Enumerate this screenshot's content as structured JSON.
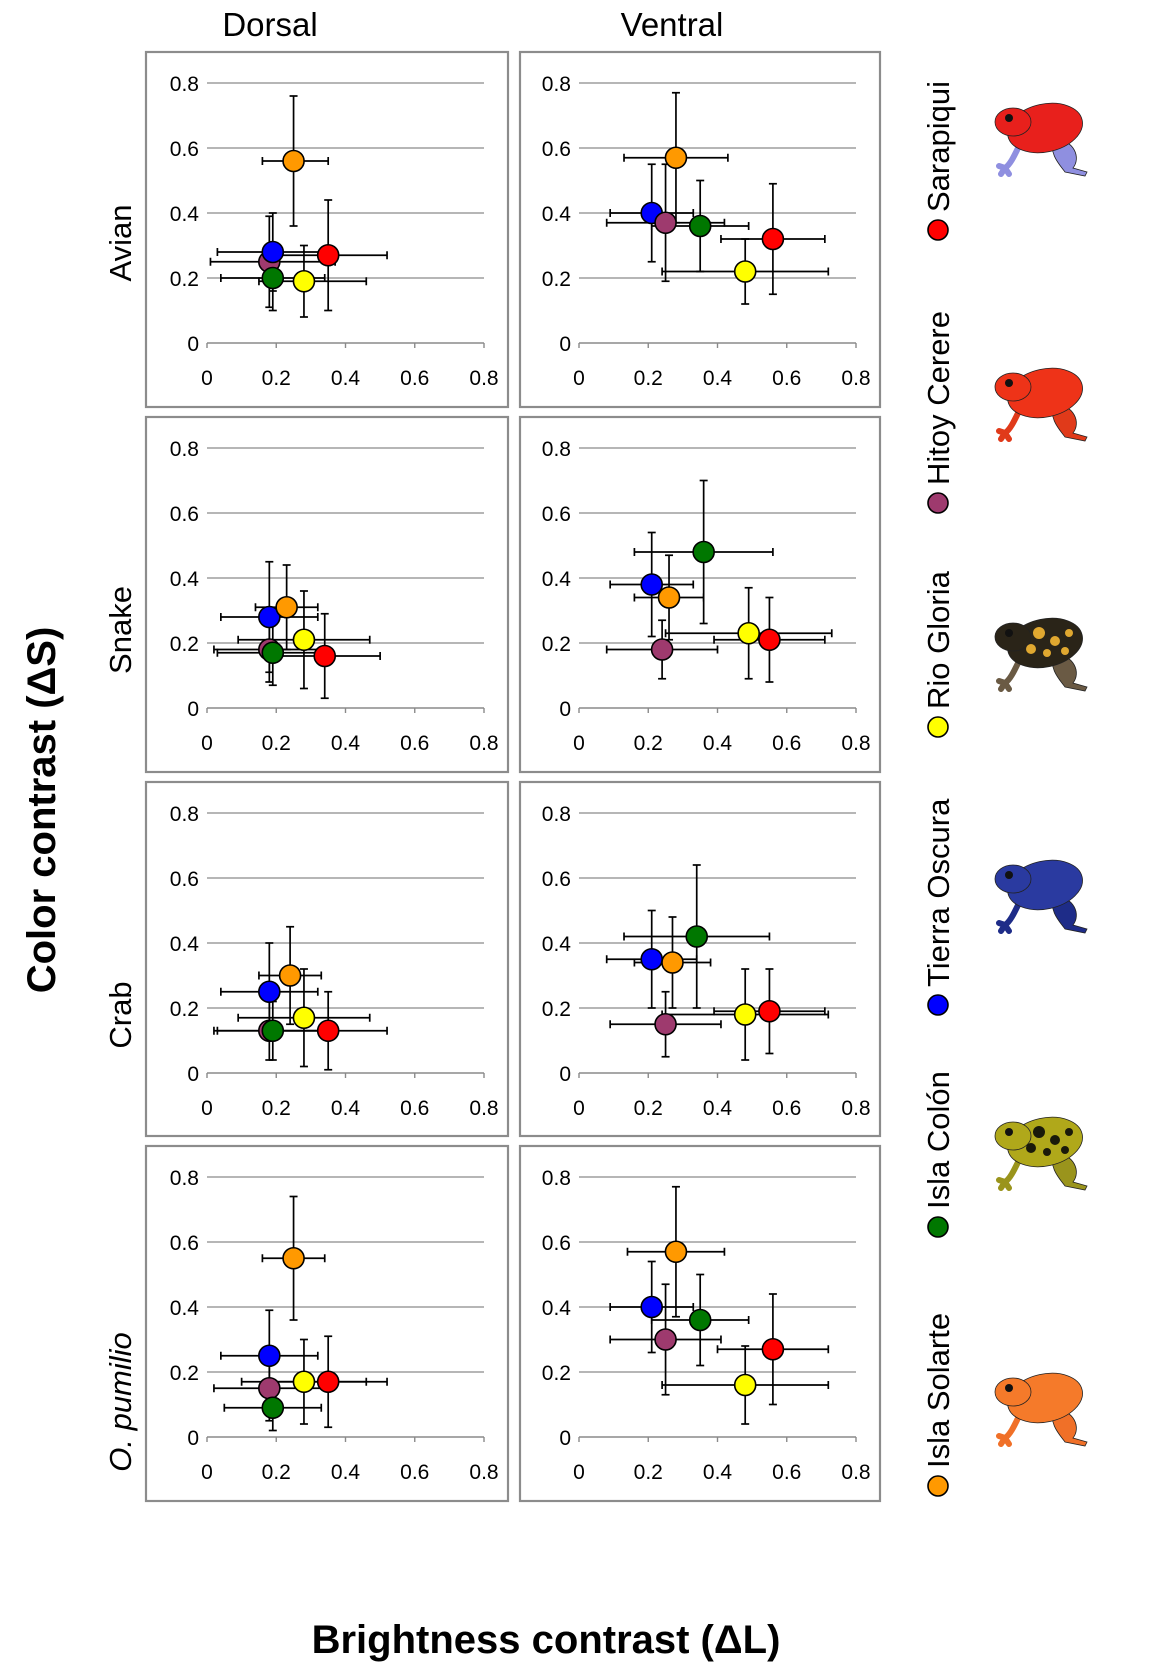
{
  "figure": {
    "column_titles": [
      "Dorsal",
      "Ventral"
    ],
    "row_titles": [
      "Avian",
      "Snake",
      "Crab"
    ],
    "row_title_italic": "O. pumilio",
    "y_axis_title": "Color contrast (ΔS)",
    "x_axis_title": "Brightness contrast (ΔL)"
  },
  "legend": {
    "items": [
      {
        "label": "Sarapiqui",
        "color": "#ff0000",
        "frog_colors": {
          "body": "#e8201c",
          "legs": "#8f8fe0"
        }
      },
      {
        "label": "Hitoy Cerere",
        "color": "#9e3a6e",
        "frog_colors": {
          "body": "#ee3318",
          "legs": "#e03a1a"
        }
      },
      {
        "label": "Rio Gloria",
        "color": "#ffff00",
        "frog_colors": {
          "body": "#2a2418",
          "legs": "#6a5a44",
          "spots": "#e0a830"
        }
      },
      {
        "label": "Tierra Oscura",
        "color": "#0000ff",
        "frog_colors": {
          "body": "#2a3aa0",
          "legs": "#1e2c88"
        }
      },
      {
        "label": "Isla Colón",
        "color": "#007700",
        "frog_colors": {
          "body": "#b0a81a",
          "legs": "#9a941c",
          "spots": "#1a1a0a"
        }
      },
      {
        "label": "Isla Solarte",
        "color": "#ff9900",
        "frog_colors": {
          "body": "#f57a2a",
          "legs": "#f07028"
        }
      }
    ]
  },
  "chart_data": [
    {
      "type": "scatter",
      "row": "Avian",
      "column": "Dorsal",
      "xlim": [
        0,
        0.8
      ],
      "ylim": [
        0,
        0.8
      ],
      "x_ticks": [
        "0",
        "0.2",
        "0.4",
        "0.6",
        "0.8"
      ],
      "y_ticks": [
        "0",
        "0.2",
        "0.4",
        "0.6",
        "0.8"
      ],
      "grid": "horizontal",
      "points": [
        {
          "series": "Hitoy Cerere",
          "x": 0.18,
          "y": 0.25,
          "xerr": [
            0.17,
            0.19
          ],
          "yerr": [
            0.14,
            0.14
          ]
        },
        {
          "series": "Rio Gloria",
          "x": 0.28,
          "y": 0.19,
          "xerr": [
            0.13,
            0.18
          ],
          "yerr": [
            0.11,
            0.11
          ]
        },
        {
          "series": "Isla Colón",
          "x": 0.19,
          "y": 0.2,
          "xerr": [
            0.15,
            0.15
          ],
          "yerr": [
            0.1,
            0.1
          ]
        },
        {
          "series": "Sarapiqui",
          "x": 0.35,
          "y": 0.27,
          "xerr": [
            0.17,
            0.17
          ],
          "yerr": [
            0.17,
            0.17
          ]
        },
        {
          "series": "Tierra Oscura",
          "x": 0.19,
          "y": 0.28,
          "xerr": [
            0.16,
            0.16
          ],
          "yerr": [
            0.12,
            0.12
          ]
        },
        {
          "series": "Isla Solarte",
          "x": 0.25,
          "y": 0.56,
          "xerr": [
            0.09,
            0.1
          ],
          "yerr": [
            0.2,
            0.2
          ]
        }
      ]
    },
    {
      "type": "scatter",
      "row": "Avian",
      "column": "Ventral",
      "xlim": [
        0,
        0.8
      ],
      "ylim": [
        0,
        0.8
      ],
      "x_ticks": [
        "0",
        "0.2",
        "0.4",
        "0.6",
        "0.8"
      ],
      "y_ticks": [
        "0",
        "0.2",
        "0.4",
        "0.6",
        "0.8"
      ],
      "grid": "horizontal",
      "points": [
        {
          "series": "Tierra Oscura",
          "x": 0.21,
          "y": 0.4,
          "xerr": [
            0.12,
            0.12
          ],
          "yerr": [
            0.15,
            0.15
          ]
        },
        {
          "series": "Hitoy Cerere",
          "x": 0.25,
          "y": 0.37,
          "xerr": [
            0.17,
            0.17
          ],
          "yerr": [
            0.18,
            0.18
          ]
        },
        {
          "series": "Isla Colón",
          "x": 0.35,
          "y": 0.36,
          "xerr": [
            0.14,
            0.14
          ],
          "yerr": [
            0.14,
            0.14
          ]
        },
        {
          "series": "Sarapiqui",
          "x": 0.56,
          "y": 0.32,
          "xerr": [
            0.15,
            0.15
          ],
          "yerr": [
            0.17,
            0.17
          ]
        },
        {
          "series": "Rio Gloria",
          "x": 0.48,
          "y": 0.22,
          "xerr": [
            0.24,
            0.24
          ],
          "yerr": [
            0.1,
            0.1
          ]
        },
        {
          "series": "Isla Solarte",
          "x": 0.28,
          "y": 0.57,
          "xerr": [
            0.15,
            0.15
          ],
          "yerr": [
            0.2,
            0.2
          ]
        }
      ]
    },
    {
      "type": "scatter",
      "row": "Snake",
      "column": "Dorsal",
      "xlim": [
        0,
        0.8
      ],
      "ylim": [
        0,
        0.8
      ],
      "x_ticks": [
        "0",
        "0.2",
        "0.4",
        "0.6",
        "0.8"
      ],
      "y_ticks": [
        "0",
        "0.2",
        "0.4",
        "0.6",
        "0.8"
      ],
      "grid": "horizontal",
      "points": [
        {
          "series": "Hitoy Cerere",
          "x": 0.18,
          "y": 0.18,
          "xerr": [
            0.16,
            0.16
          ],
          "yerr": [
            0.1,
            0.1
          ]
        },
        {
          "series": "Isla Colón",
          "x": 0.19,
          "y": 0.17,
          "xerr": [
            0.16,
            0.16
          ],
          "yerr": [
            0.1,
            0.1
          ]
        },
        {
          "series": "Rio Gloria",
          "x": 0.28,
          "y": 0.21,
          "xerr": [
            0.19,
            0.19
          ],
          "yerr": [
            0.15,
            0.15
          ]
        },
        {
          "series": "Sarapiqui",
          "x": 0.34,
          "y": 0.16,
          "xerr": [
            0.16,
            0.16
          ],
          "yerr": [
            0.13,
            0.13
          ]
        },
        {
          "series": "Tierra Oscura",
          "x": 0.18,
          "y": 0.28,
          "xerr": [
            0.14,
            0.14
          ],
          "yerr": [
            0.17,
            0.17
          ]
        },
        {
          "series": "Isla Solarte",
          "x": 0.23,
          "y": 0.31,
          "xerr": [
            0.09,
            0.09
          ],
          "yerr": [
            0.13,
            0.13
          ]
        }
      ]
    },
    {
      "type": "scatter",
      "row": "Snake",
      "column": "Ventral",
      "xlim": [
        0,
        0.8
      ],
      "ylim": [
        0,
        0.8
      ],
      "x_ticks": [
        "0",
        "0.2",
        "0.4",
        "0.6",
        "0.8"
      ],
      "y_ticks": [
        "0",
        "0.2",
        "0.4",
        "0.6",
        "0.8"
      ],
      "grid": "horizontal",
      "points": [
        {
          "series": "Tierra Oscura",
          "x": 0.21,
          "y": 0.38,
          "xerr": [
            0.12,
            0.12
          ],
          "yerr": [
            0.16,
            0.16
          ]
        },
        {
          "series": "Isla Solarte",
          "x": 0.26,
          "y": 0.34,
          "xerr": [
            0.1,
            0.1
          ],
          "yerr": [
            0.13,
            0.13
          ]
        },
        {
          "series": "Hitoy Cerere",
          "x": 0.24,
          "y": 0.18,
          "xerr": [
            0.16,
            0.16
          ],
          "yerr": [
            0.09,
            0.09
          ]
        },
        {
          "series": "Isla Colón",
          "x": 0.36,
          "y": 0.48,
          "xerr": [
            0.2,
            0.2
          ],
          "yerr": [
            0.22,
            0.22
          ]
        },
        {
          "series": "Rio Gloria",
          "x": 0.49,
          "y": 0.23,
          "xerr": [
            0.24,
            0.24
          ],
          "yerr": [
            0.14,
            0.14
          ]
        },
        {
          "series": "Sarapiqui",
          "x": 0.55,
          "y": 0.21,
          "xerr": [
            0.16,
            0.16
          ],
          "yerr": [
            0.13,
            0.13
          ]
        }
      ]
    },
    {
      "type": "scatter",
      "row": "Crab",
      "column": "Dorsal",
      "xlim": [
        0,
        0.8
      ],
      "ylim": [
        0,
        0.8
      ],
      "x_ticks": [
        "0",
        "0.2",
        "0.4",
        "0.6",
        "0.8"
      ],
      "y_ticks": [
        "0",
        "0.2",
        "0.4",
        "0.6",
        "0.8"
      ],
      "grid": "horizontal",
      "points": [
        {
          "series": "Hitoy Cerere",
          "x": 0.18,
          "y": 0.13,
          "xerr": [
            0.16,
            0.16
          ],
          "yerr": [
            0.09,
            0.09
          ]
        },
        {
          "series": "Isla Colón",
          "x": 0.19,
          "y": 0.13,
          "xerr": [
            0.16,
            0.16
          ],
          "yerr": [
            0.09,
            0.09
          ]
        },
        {
          "series": "Rio Gloria",
          "x": 0.28,
          "y": 0.17,
          "xerr": [
            0.19,
            0.19
          ],
          "yerr": [
            0.15,
            0.15
          ]
        },
        {
          "series": "Sarapiqui",
          "x": 0.35,
          "y": 0.13,
          "xerr": [
            0.17,
            0.17
          ],
          "yerr": [
            0.12,
            0.12
          ]
        },
        {
          "series": "Tierra Oscura",
          "x": 0.18,
          "y": 0.25,
          "xerr": [
            0.14,
            0.14
          ],
          "yerr": [
            0.15,
            0.15
          ]
        },
        {
          "series": "Isla Solarte",
          "x": 0.24,
          "y": 0.3,
          "xerr": [
            0.09,
            0.09
          ],
          "yerr": [
            0.15,
            0.15
          ]
        }
      ]
    },
    {
      "type": "scatter",
      "row": "Crab",
      "column": "Ventral",
      "xlim": [
        0,
        0.8
      ],
      "ylim": [
        0,
        0.8
      ],
      "x_ticks": [
        "0",
        "0.2",
        "0.4",
        "0.6",
        "0.8"
      ],
      "y_ticks": [
        "0",
        "0.2",
        "0.4",
        "0.6",
        "0.8"
      ],
      "grid": "horizontal",
      "points": [
        {
          "series": "Tierra Oscura",
          "x": 0.21,
          "y": 0.35,
          "xerr": [
            0.13,
            0.13
          ],
          "yerr": [
            0.15,
            0.15
          ]
        },
        {
          "series": "Isla Solarte",
          "x": 0.27,
          "y": 0.34,
          "xerr": [
            0.11,
            0.11
          ],
          "yerr": [
            0.14,
            0.14
          ]
        },
        {
          "series": "Hitoy Cerere",
          "x": 0.25,
          "y": 0.15,
          "xerr": [
            0.16,
            0.16
          ],
          "yerr": [
            0.1,
            0.1
          ]
        },
        {
          "series": "Isla Colón",
          "x": 0.34,
          "y": 0.42,
          "xerr": [
            0.21,
            0.21
          ],
          "yerr": [
            0.22,
            0.22
          ]
        },
        {
          "series": "Rio Gloria",
          "x": 0.48,
          "y": 0.18,
          "xerr": [
            0.24,
            0.24
          ],
          "yerr": [
            0.14,
            0.14
          ]
        },
        {
          "series": "Sarapiqui",
          "x": 0.55,
          "y": 0.19,
          "xerr": [
            0.16,
            0.16
          ],
          "yerr": [
            0.13,
            0.13
          ]
        }
      ]
    },
    {
      "type": "scatter",
      "row": "O. pumilio",
      "column": "Dorsal",
      "xlim": [
        0,
        0.8
      ],
      "ylim": [
        0,
        0.8
      ],
      "x_ticks": [
        "0",
        "0.2",
        "0.4",
        "0.6",
        "0.8"
      ],
      "y_ticks": [
        "0",
        "0.2",
        "0.4",
        "0.6",
        "0.8"
      ],
      "grid": "horizontal",
      "points": [
        {
          "series": "Hitoy Cerere",
          "x": 0.18,
          "y": 0.15,
          "xerr": [
            0.16,
            0.16
          ],
          "yerr": [
            0.1,
            0.1
          ]
        },
        {
          "series": "Isla Colón",
          "x": 0.19,
          "y": 0.09,
          "xerr": [
            0.14,
            0.14
          ],
          "yerr": [
            0.07,
            0.07
          ]
        },
        {
          "series": "Rio Gloria",
          "x": 0.28,
          "y": 0.17,
          "xerr": [
            0.18,
            0.18
          ],
          "yerr": [
            0.13,
            0.13
          ]
        },
        {
          "series": "Sarapiqui",
          "x": 0.35,
          "y": 0.17,
          "xerr": [
            0.17,
            0.17
          ],
          "yerr": [
            0.14,
            0.14
          ]
        },
        {
          "series": "Tierra Oscura",
          "x": 0.18,
          "y": 0.25,
          "xerr": [
            0.14,
            0.14
          ],
          "yerr": [
            0.14,
            0.14
          ]
        },
        {
          "series": "Isla Solarte",
          "x": 0.25,
          "y": 0.55,
          "xerr": [
            0.09,
            0.09
          ],
          "yerr": [
            0.19,
            0.19
          ]
        }
      ]
    },
    {
      "type": "scatter",
      "row": "O. pumilio",
      "column": "Ventral",
      "xlim": [
        0,
        0.8
      ],
      "ylim": [
        0,
        0.8
      ],
      "x_ticks": [
        "0",
        "0.2",
        "0.4",
        "0.6",
        "0.8"
      ],
      "y_ticks": [
        "0",
        "0.2",
        "0.4",
        "0.6",
        "0.8"
      ],
      "grid": "horizontal",
      "points": [
        {
          "series": "Tierra Oscura",
          "x": 0.21,
          "y": 0.4,
          "xerr": [
            0.12,
            0.12
          ],
          "yerr": [
            0.14,
            0.14
          ]
        },
        {
          "series": "Hitoy Cerere",
          "x": 0.25,
          "y": 0.3,
          "xerr": [
            0.16,
            0.16
          ],
          "yerr": [
            0.17,
            0.17
          ]
        },
        {
          "series": "Isla Colón",
          "x": 0.35,
          "y": 0.36,
          "xerr": [
            0.14,
            0.14
          ],
          "yerr": [
            0.14,
            0.14
          ]
        },
        {
          "series": "Sarapiqui",
          "x": 0.56,
          "y": 0.27,
          "xerr": [
            0.16,
            0.16
          ],
          "yerr": [
            0.17,
            0.17
          ]
        },
        {
          "series": "Rio Gloria",
          "x": 0.48,
          "y": 0.16,
          "xerr": [
            0.24,
            0.24
          ],
          "yerr": [
            0.12,
            0.12
          ]
        },
        {
          "series": "Isla Solarte",
          "x": 0.28,
          "y": 0.57,
          "xerr": [
            0.14,
            0.14
          ],
          "yerr": [
            0.2,
            0.2
          ]
        }
      ]
    }
  ]
}
